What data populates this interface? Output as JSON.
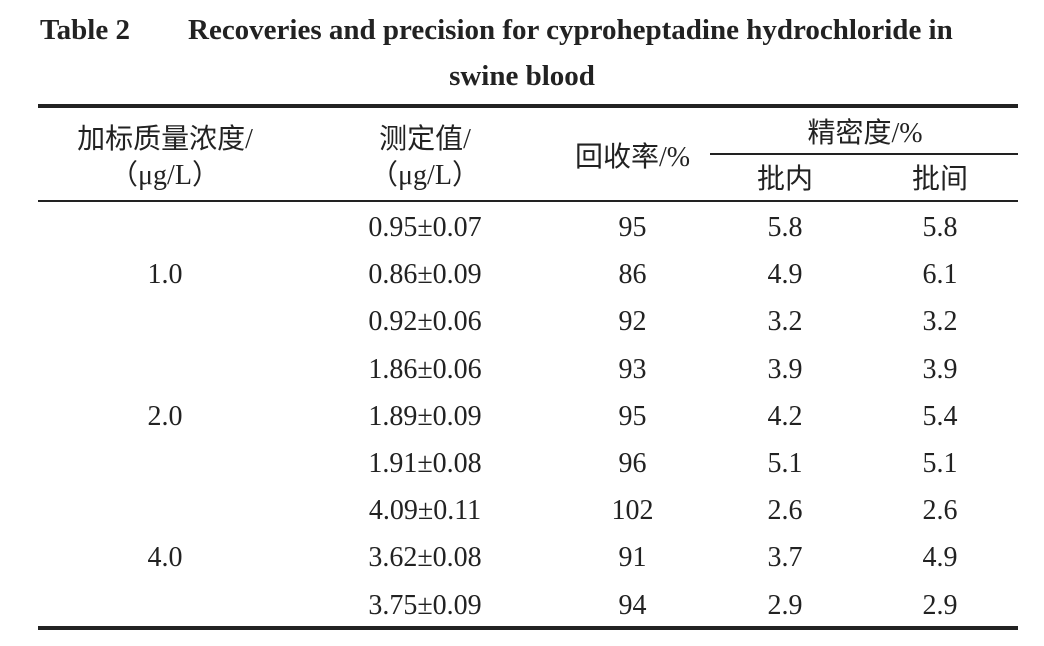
{
  "caption": {
    "label": "Table 2",
    "title_line1": "Recoveries and precision for cyproheptadine hydrochloride in",
    "title_line2": "swine blood"
  },
  "headers": {
    "spiked_line1": "加标质量浓度/",
    "spiked_line2": "（μg/L）",
    "measured_line1": "测定值/",
    "measured_line2": "（μg/L）",
    "recovery": "回收率/%",
    "precision": "精密度/%",
    "intra": "批内",
    "inter": "批间"
  },
  "groups": [
    {
      "spiked": "1.0",
      "rows": [
        {
          "measured": "0.95±0.07",
          "recovery": "95",
          "intra": "5.8",
          "inter": "5.8"
        },
        {
          "measured": "0.86±0.09",
          "recovery": "86",
          "intra": "4.9",
          "inter": "6.1"
        },
        {
          "measured": "0.92±0.06",
          "recovery": "92",
          "intra": "3.2",
          "inter": "3.2"
        }
      ]
    },
    {
      "spiked": "2.0",
      "rows": [
        {
          "measured": "1.86±0.06",
          "recovery": "93",
          "intra": "3.9",
          "inter": "3.9"
        },
        {
          "measured": "1.89±0.09",
          "recovery": "95",
          "intra": "4.2",
          "inter": "5.4"
        },
        {
          "measured": "1.91±0.08",
          "recovery": "96",
          "intra": "5.1",
          "inter": "5.1"
        }
      ]
    },
    {
      "spiked": "4.0",
      "rows": [
        {
          "measured": "4.09±0.11",
          "recovery": "102",
          "intra": "2.6",
          "inter": "2.6"
        },
        {
          "measured": "3.62±0.08",
          "recovery": "91",
          "intra": "3.7",
          "inter": "4.9"
        },
        {
          "measured": "3.75±0.09",
          "recovery": "94",
          "intra": "2.9",
          "inter": "2.9"
        }
      ]
    }
  ]
}
